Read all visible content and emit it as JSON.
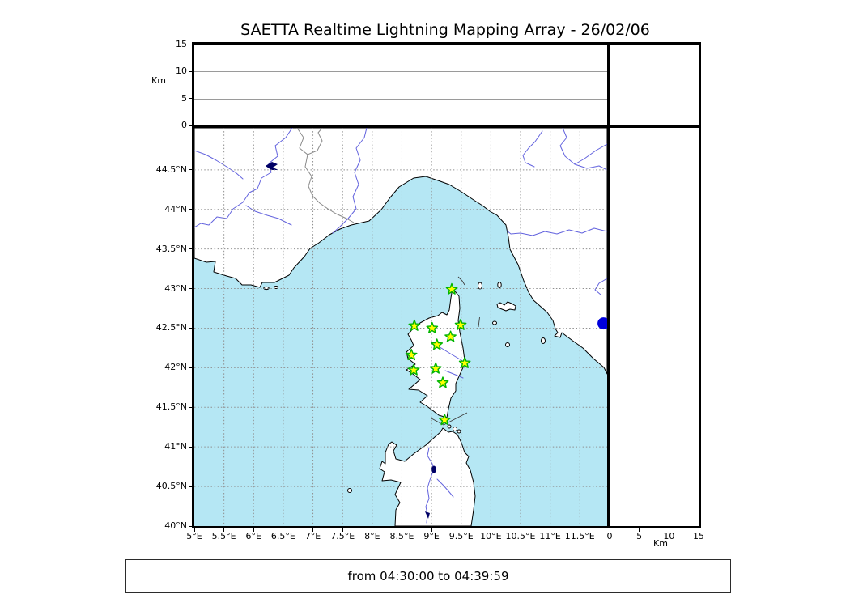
{
  "title": "SAETTA Realtime Lightning Mapping Array - 26/02/06",
  "footer": {
    "time_range": "from 04:30:00 to 04:39:59"
  },
  "colors": {
    "sea": "#b5e7f4",
    "land": "#ffffff",
    "coastline": "#000000",
    "river": "#6363de",
    "lake": "#000066",
    "country_border": "#8a8a8a",
    "grid_map": "#8f8f8f",
    "grid_panel": "#9a9a9a",
    "station_fill": "#ffff00",
    "station_edge": "#00b400",
    "event_dot": "#0000dd"
  },
  "altitude_axis": {
    "unit_label": "Km",
    "tick_values": [
      0,
      5,
      10,
      15
    ],
    "tick_labels": [
      "0",
      "5",
      "10",
      "15"
    ],
    "gridline_values": [
      5,
      10
    ],
    "max_km": 15
  },
  "map": {
    "lon_min": 5.0,
    "lon_max": 11.96,
    "lat_min": 40.0,
    "lat_max": 45.03,
    "lon_tick_values": [
      5,
      5.5,
      6,
      6.5,
      7,
      7.5,
      8,
      8.5,
      9,
      9.5,
      10,
      10.5,
      11,
      11.5
    ],
    "lon_tick_labels": [
      "5°E",
      "5.5°E",
      "6°E",
      "6.5°E",
      "7°E",
      "7.5°E",
      "8°E",
      "8.5°E",
      "9°E",
      "9.5°E",
      "10°E",
      "10.5°E",
      "11°E",
      "11.5°E"
    ],
    "lat_tick_values": [
      40,
      40.5,
      41,
      41.5,
      42,
      42.5,
      43,
      43.5,
      44,
      44.5
    ],
    "lat_tick_labels": [
      "40°N",
      "40.5°N",
      "41°N",
      "41.5°N",
      "42°N",
      "42.5°N",
      "43°N",
      "43.5°N",
      "44°N",
      "44.5°N"
    ]
  },
  "stations": [
    {
      "lon": 9.34,
      "lat": 42.99
    },
    {
      "lon": 8.71,
      "lat": 42.53
    },
    {
      "lon": 9.01,
      "lat": 42.5
    },
    {
      "lon": 9.49,
      "lat": 42.54
    },
    {
      "lon": 9.32,
      "lat": 42.39
    },
    {
      "lon": 9.09,
      "lat": 42.29
    },
    {
      "lon": 8.66,
      "lat": 42.16
    },
    {
      "lon": 9.56,
      "lat": 42.06
    },
    {
      "lon": 8.7,
      "lat": 41.97
    },
    {
      "lon": 9.07,
      "lat": 41.99
    },
    {
      "lon": 9.19,
      "lat": 41.81
    },
    {
      "lon": 9.22,
      "lat": 41.34
    }
  ],
  "events": [
    {
      "lon": 11.9,
      "lat": 42.56
    }
  ]
}
